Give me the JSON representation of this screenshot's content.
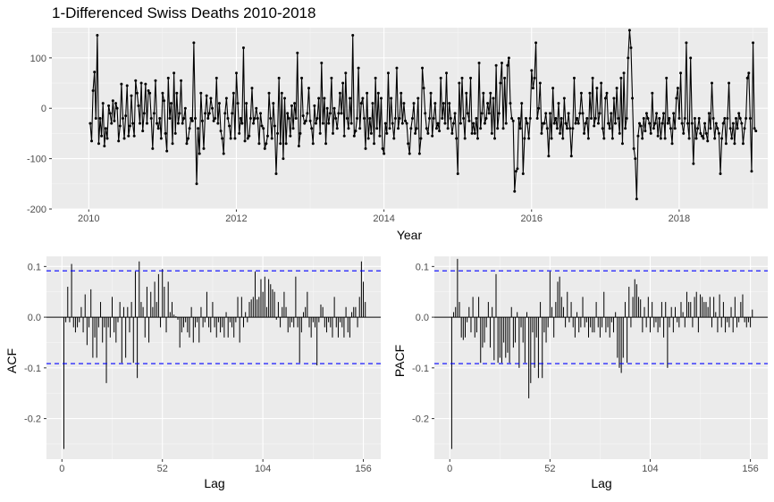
{
  "chart_data": [
    {
      "id": "ts",
      "type": "line",
      "title": "1-Differenced Swiss Deaths 2010-2018",
      "xlabel": "Year",
      "ylabel": "",
      "xlim": [
        2009.5,
        2019.2
      ],
      "ylim": [
        -200,
        160
      ],
      "xticks": [
        2010,
        2012,
        2014,
        2016,
        2018
      ],
      "xtick_labels": [
        "2010",
        "2012",
        "2014",
        "2016",
        "2018"
      ],
      "yticks": [
        -200,
        -100,
        0,
        100
      ],
      "ytick_labels": [
        "-200",
        "-100",
        "0",
        "100"
      ],
      "grid": true,
      "x_start": 2010.02,
      "x_step": 0.019231,
      "series": [
        {
          "color": "#000000",
          "values": [
            -30,
            -65,
            35,
            72,
            -20,
            145,
            -70,
            -20,
            -55,
            10,
            -75,
            -40,
            -60,
            5,
            -10,
            -30,
            15,
            -25,
            10,
            0,
            -65,
            -35,
            48,
            -20,
            -60,
            -15,
            45,
            -55,
            -35,
            25,
            -30,
            -55,
            55,
            30,
            5,
            -30,
            50,
            -45,
            -10,
            48,
            -30,
            35,
            30,
            -20,
            -80,
            -10,
            55,
            -30,
            -40,
            -20,
            -60,
            30,
            15,
            -50,
            -85,
            60,
            -20,
            10,
            -70,
            70,
            -50,
            30,
            -30,
            -10,
            55,
            -30,
            -20,
            0,
            -70,
            -60,
            -40,
            -20,
            -25,
            130,
            -20,
            -150,
            -40,
            -90,
            30,
            -25,
            -80,
            -10,
            25,
            -20,
            -10,
            20,
            0,
            -25,
            -20,
            60,
            -30,
            10,
            -45,
            -60,
            -90,
            -10,
            20,
            -20,
            -35,
            -60,
            -10,
            30,
            -60,
            70,
            10,
            -50,
            -20,
            -30,
            120,
            -65,
            10,
            -60,
            -55,
            -20,
            40,
            -30,
            -20,
            0,
            -20,
            -70,
            -10,
            -35,
            -40,
            -80,
            -70,
            -55,
            30,
            -20,
            -60,
            10,
            -35,
            -130,
            -50,
            60,
            -70,
            30,
            -100,
            20,
            -70,
            -10,
            -20,
            -55,
            5,
            -40,
            10,
            -20,
            110,
            -75,
            -50,
            60,
            -15,
            -30,
            -25,
            -10,
            40,
            -25,
            -40,
            -70,
            5,
            -30,
            -20,
            20,
            -50,
            90,
            -30,
            20,
            -70,
            0,
            -30,
            -10,
            60,
            -50,
            0,
            -20,
            -40,
            -10,
            30,
            -10,
            50,
            -55,
            70,
            -20,
            -40,
            20,
            -30,
            145,
            -55,
            -45,
            -20,
            80,
            -40,
            10,
            20,
            -20,
            -80,
            30,
            -60,
            -20,
            -50,
            10,
            -70,
            60,
            -40,
            30,
            -55,
            20,
            -80,
            -90,
            -30,
            -50,
            70,
            -40,
            20,
            -30,
            -60,
            -20,
            80,
            -40,
            -20,
            30,
            -30,
            10,
            -25,
            -30,
            -70,
            -90,
            -40,
            -20,
            10,
            -50,
            -40,
            20,
            -90,
            -60,
            80,
            40,
            -10,
            -40,
            -50,
            -20,
            30,
            -55,
            -20,
            10,
            -40,
            -30,
            -45,
            60,
            -20,
            10,
            -30,
            70,
            -40,
            10,
            -20,
            -50,
            -30,
            -10,
            -60,
            -130,
            50,
            -30,
            60,
            -20,
            -60,
            30,
            -10,
            -25,
            60,
            -50,
            -30,
            -50,
            -20,
            -60,
            90,
            -40,
            -10,
            30,
            -30,
            -20,
            10,
            -10,
            30,
            -50,
            20,
            -60,
            85,
            -40,
            -10,
            50,
            90,
            -40,
            60,
            -30,
            85,
            100,
            10,
            -20,
            -25,
            -165,
            -125,
            -120,
            -20,
            -40,
            10,
            -130,
            -60,
            -20,
            -30,
            -60,
            -20,
            75,
            40,
            60,
            130,
            -20,
            0,
            50,
            -50,
            -30,
            -30,
            -10,
            -40,
            -95,
            -10,
            -60,
            40,
            -30,
            -20,
            -40,
            10,
            -50,
            -20,
            -60,
            20,
            -30,
            -40,
            -10,
            -40,
            -95,
            -40,
            60,
            -30,
            -20,
            -30,
            -10,
            30,
            -10,
            -50,
            -30,
            -20,
            -60,
            30,
            -20,
            60,
            -35,
            -20,
            40,
            -30,
            -10,
            50,
            -40,
            -60,
            20,
            30,
            -30,
            -40,
            -10,
            -60,
            20,
            -30,
            40,
            -20,
            -50,
            60,
            -70,
            70,
            -40,
            -20,
            100,
            155,
            120,
            20,
            -80,
            -100,
            -180,
            -55,
            -30,
            -35,
            -60,
            -20,
            -45,
            -10,
            -20,
            -30,
            -50,
            30,
            -40,
            -30,
            -10,
            -55,
            -20,
            -60,
            -30,
            -10,
            -60,
            60,
            -30,
            -20,
            -40,
            -70,
            -10,
            -40,
            20,
            40,
            -20,
            70,
            -30,
            -50,
            -20,
            130,
            -30,
            -60,
            100,
            -30,
            -110,
            -20,
            -60,
            -40,
            -20,
            -50,
            -55,
            -60,
            -30,
            -50,
            -65,
            -10,
            -40,
            50,
            -20,
            -60,
            -30,
            -40,
            -50,
            -130,
            -60,
            -30,
            -20,
            -70,
            -20,
            50,
            -40,
            -60,
            -30,
            -70,
            -20,
            -40,
            -10,
            -20,
            -30,
            -70,
            -40,
            -20,
            60,
            70,
            -20,
            -125,
            130,
            -40,
            -45
          ]
        }
      ]
    },
    {
      "id": "acf",
      "type": "bar",
      "title": "",
      "xlabel": "Lag",
      "ylabel": "ACF",
      "xlim": [
        -8,
        165
      ],
      "ylim": [
        -0.28,
        0.12
      ],
      "xticks": [
        0,
        52,
        104,
        156
      ],
      "xtick_labels": [
        "0",
        "52",
        "104",
        "156"
      ],
      "yticks": [
        -0.2,
        -0.1,
        0,
        0.1
      ],
      "ytick_labels": [
        "-0.2",
        "-0.1",
        "0.0",
        "0.1"
      ],
      "ci": 0.0915,
      "grid": true,
      "lags": [
        1,
        2,
        3,
        4,
        5,
        6,
        7,
        8,
        9,
        10,
        11,
        12,
        13,
        14,
        15,
        16,
        17,
        18,
        19,
        20,
        21,
        22,
        23,
        24,
        25,
        26,
        27,
        28,
        29,
        30,
        31,
        32,
        33,
        34,
        35,
        36,
        37,
        38,
        39,
        40,
        41,
        42,
        43,
        44,
        45,
        46,
        47,
        48,
        49,
        50,
        51,
        52,
        53,
        54,
        55,
        56,
        57,
        58,
        59,
        60,
        61,
        62,
        63,
        64,
        65,
        66,
        67,
        68,
        69,
        70,
        71,
        72,
        73,
        74,
        75,
        76,
        77,
        78,
        79,
        80,
        81,
        82,
        83,
        84,
        85,
        86,
        87,
        88,
        89,
        90,
        91,
        92,
        93,
        94,
        95,
        96,
        97,
        98,
        99,
        100,
        101,
        102,
        103,
        104,
        105,
        106,
        107,
        108,
        109,
        110,
        111,
        112,
        113,
        114,
        115,
        116,
        117,
        118,
        119,
        120,
        121,
        122,
        123,
        124,
        125,
        126,
        127,
        128,
        129,
        130,
        131,
        132,
        133,
        134,
        135,
        136,
        137,
        138,
        139,
        140,
        141,
        142,
        143,
        144,
        145,
        146,
        147,
        148,
        149,
        150,
        151,
        152,
        153,
        154,
        155,
        156,
        157
      ],
      "values": [
        -0.26,
        -0.01,
        0.06,
        -0.01,
        0.105,
        -0.02,
        -0.03,
        -0.02,
        -0.01,
        0.02,
        -0.03,
        0.045,
        -0.055,
        -0.02,
        0.055,
        -0.08,
        -0.04,
        -0.08,
        -0.02,
        0.03,
        -0.05,
        -0.02,
        -0.13,
        -0.02,
        -0.04,
        0.04,
        -0.03,
        -0.05,
        -0.01,
        0.03,
        -0.09,
        0.02,
        -0.08,
        0.02,
        -0.03,
        0.03,
        -0.09,
        0.09,
        -0.12,
        0.11,
        0.03,
        0.02,
        -0.04,
        0.06,
        -0.05,
        0.05,
        0.02,
        0.07,
        0.03,
        0.085,
        -0.02,
        0.095,
        0.06,
        -0.03,
        0.07,
        0.01,
        0.03,
        0.005,
        0.002,
        -0.005,
        -0.06,
        -0.03,
        -0.02,
        -0.01,
        -0.03,
        -0.04,
        0.02,
        -0.05,
        -0.02,
        -0.01,
        -0.05,
        0.02,
        -0.02,
        -0.01,
        0.05,
        -0.02,
        -0.03,
        0.03,
        -0.02,
        -0.04,
        -0.01,
        -0.03,
        -0.02,
        -0.04,
        0.01,
        -0.04,
        -0.01,
        -0.02,
        -0.04,
        -0.01,
        0.04,
        -0.05,
        0.04,
        -0.02,
        0.01,
        -0.01,
        0.03,
        0.035,
        0.04,
        0.09,
        0.035,
        0.04,
        0.075,
        0.05,
        0.08,
        0.02,
        0.075,
        0.065,
        0.055,
        0.05,
        -0.005,
        0.03,
        -0.02,
        0.02,
        0.05,
        0.02,
        -0.03,
        -0.02,
        -0.01,
        -0.02,
        0.08,
        -0.02,
        -0.09,
        -0.03,
        0.01,
        0.02,
        0.05,
        -0.02,
        -0.04,
        -0.01,
        -0.02,
        -0.095,
        -0.01,
        0.025,
        0.02,
        -0.02,
        -0.03,
        -0.01,
        -0.02,
        -0.04,
        0.04,
        -0.02,
        -0.04,
        -0.01,
        -0.02,
        -0.04,
        0.02,
        -0.03,
        -0.04,
        0.01,
        0.02,
        0.02,
        -0.02,
        0.04,
        0.11,
        0.07,
        0.03
      ]
    },
    {
      "id": "pacf",
      "type": "bar",
      "title": "",
      "xlabel": "Lag",
      "ylabel": "PACF",
      "xlim": [
        -8,
        165
      ],
      "ylim": [
        -0.28,
        0.12
      ],
      "xticks": [
        0,
        52,
        104,
        156
      ],
      "xtick_labels": [
        "0",
        "52",
        "104",
        "156"
      ],
      "yticks": [
        -0.2,
        -0.1,
        0,
        0.1
      ],
      "ytick_labels": [
        "-0.2",
        "-0.1",
        "0.0",
        "0.1"
      ],
      "ci": 0.0915,
      "grid": true,
      "lags": [
        1,
        2,
        3,
        4,
        5,
        6,
        7,
        8,
        9,
        10,
        11,
        12,
        13,
        14,
        15,
        16,
        17,
        18,
        19,
        20,
        21,
        22,
        23,
        24,
        25,
        26,
        27,
        28,
        29,
        30,
        31,
        32,
        33,
        34,
        35,
        36,
        37,
        38,
        39,
        40,
        41,
        42,
        43,
        44,
        45,
        46,
        47,
        48,
        49,
        50,
        51,
        52,
        53,
        54,
        55,
        56,
        57,
        58,
        59,
        60,
        61,
        62,
        63,
        64,
        65,
        66,
        67,
        68,
        69,
        70,
        71,
        72,
        73,
        74,
        75,
        76,
        77,
        78,
        79,
        80,
        81,
        82,
        83,
        84,
        85,
        86,
        87,
        88,
        89,
        90,
        91,
        92,
        93,
        94,
        95,
        96,
        97,
        98,
        99,
        100,
        101,
        102,
        103,
        104,
        105,
        106,
        107,
        108,
        109,
        110,
        111,
        112,
        113,
        114,
        115,
        116,
        117,
        118,
        119,
        120,
        121,
        122,
        123,
        124,
        125,
        126,
        127,
        128,
        129,
        130,
        131,
        132,
        133,
        134,
        135,
        136,
        137,
        138,
        139,
        140,
        141,
        142,
        143,
        144,
        145,
        146,
        147,
        148,
        149,
        150,
        151,
        152,
        153,
        154,
        155,
        156,
        157
      ],
      "values": [
        -0.26,
        0.01,
        0.02,
        0.115,
        0.03,
        -0.04,
        -0.045,
        -0.04,
        -0.01,
        0.02,
        -0.03,
        0.04,
        -0.04,
        -0.03,
        0.04,
        -0.09,
        -0.06,
        -0.05,
        -0.02,
        0.03,
        -0.06,
        0.02,
        -0.085,
        0.085,
        -0.09,
        -0.08,
        -0.09,
        -0.05,
        -0.08,
        -0.07,
        -0.09,
        0.02,
        -0.06,
        -0.05,
        0.01,
        -0.1,
        -0.02,
        -0.05,
        -0.09,
        0.01,
        -0.16,
        -0.13,
        -0.03,
        -0.1,
        -0.04,
        -0.12,
        0.03,
        -0.12,
        -0.03,
        -0.05,
        -0.02,
        0.09,
        0.02,
        -0.04,
        0.03,
        0.07,
        0.08,
        0.04,
        0.02,
        -0.02,
        0.05,
        -0.01,
        0.03,
        -0.02,
        -0.04,
        0.01,
        -0.03,
        -0.02,
        0.04,
        -0.02,
        -0.01,
        -0.04,
        -0.02,
        -0.03,
        -0.03,
        0.03,
        -0.02,
        -0.04,
        -0.02,
        0.05,
        -0.03,
        -0.02,
        -0.04,
        -0.01,
        -0.03,
        0.01,
        -0.08,
        -0.1,
        -0.11,
        -0.08,
        0.03,
        -0.09,
        0.06,
        -0.02,
        0.04,
        0.075,
        0.065,
        0.04,
        0.035,
        -0.03,
        0.02,
        -0.02,
        0.04,
        -0.03,
        0.03,
        -0.02,
        -0.01,
        -0.03,
        -0.02,
        0.03,
        -0.04,
        0.03,
        -0.1,
        -0.02,
        0.02,
        -0.03,
        0.02,
        -0.01,
        -0.02,
        0.03,
        0.01,
        -0.02,
        0.05,
        0.03,
        0.03,
        -0.02,
        0.04,
        0.05,
        -0.03,
        0.045,
        0.04,
        0.03,
        0.03,
        0.02,
        0.04,
        -0.02,
        0.04,
        0.01,
        -0.03,
        0.045,
        -0.02,
        0.03,
        -0.03,
        -0.01,
        -0.02,
        0.02,
        -0.03,
        0.04,
        -0.02,
        -0.01,
        0.03,
        0.045,
        -0.01,
        -0.02,
        -0.01,
        -0.02,
        0.015
      ]
    }
  ]
}
